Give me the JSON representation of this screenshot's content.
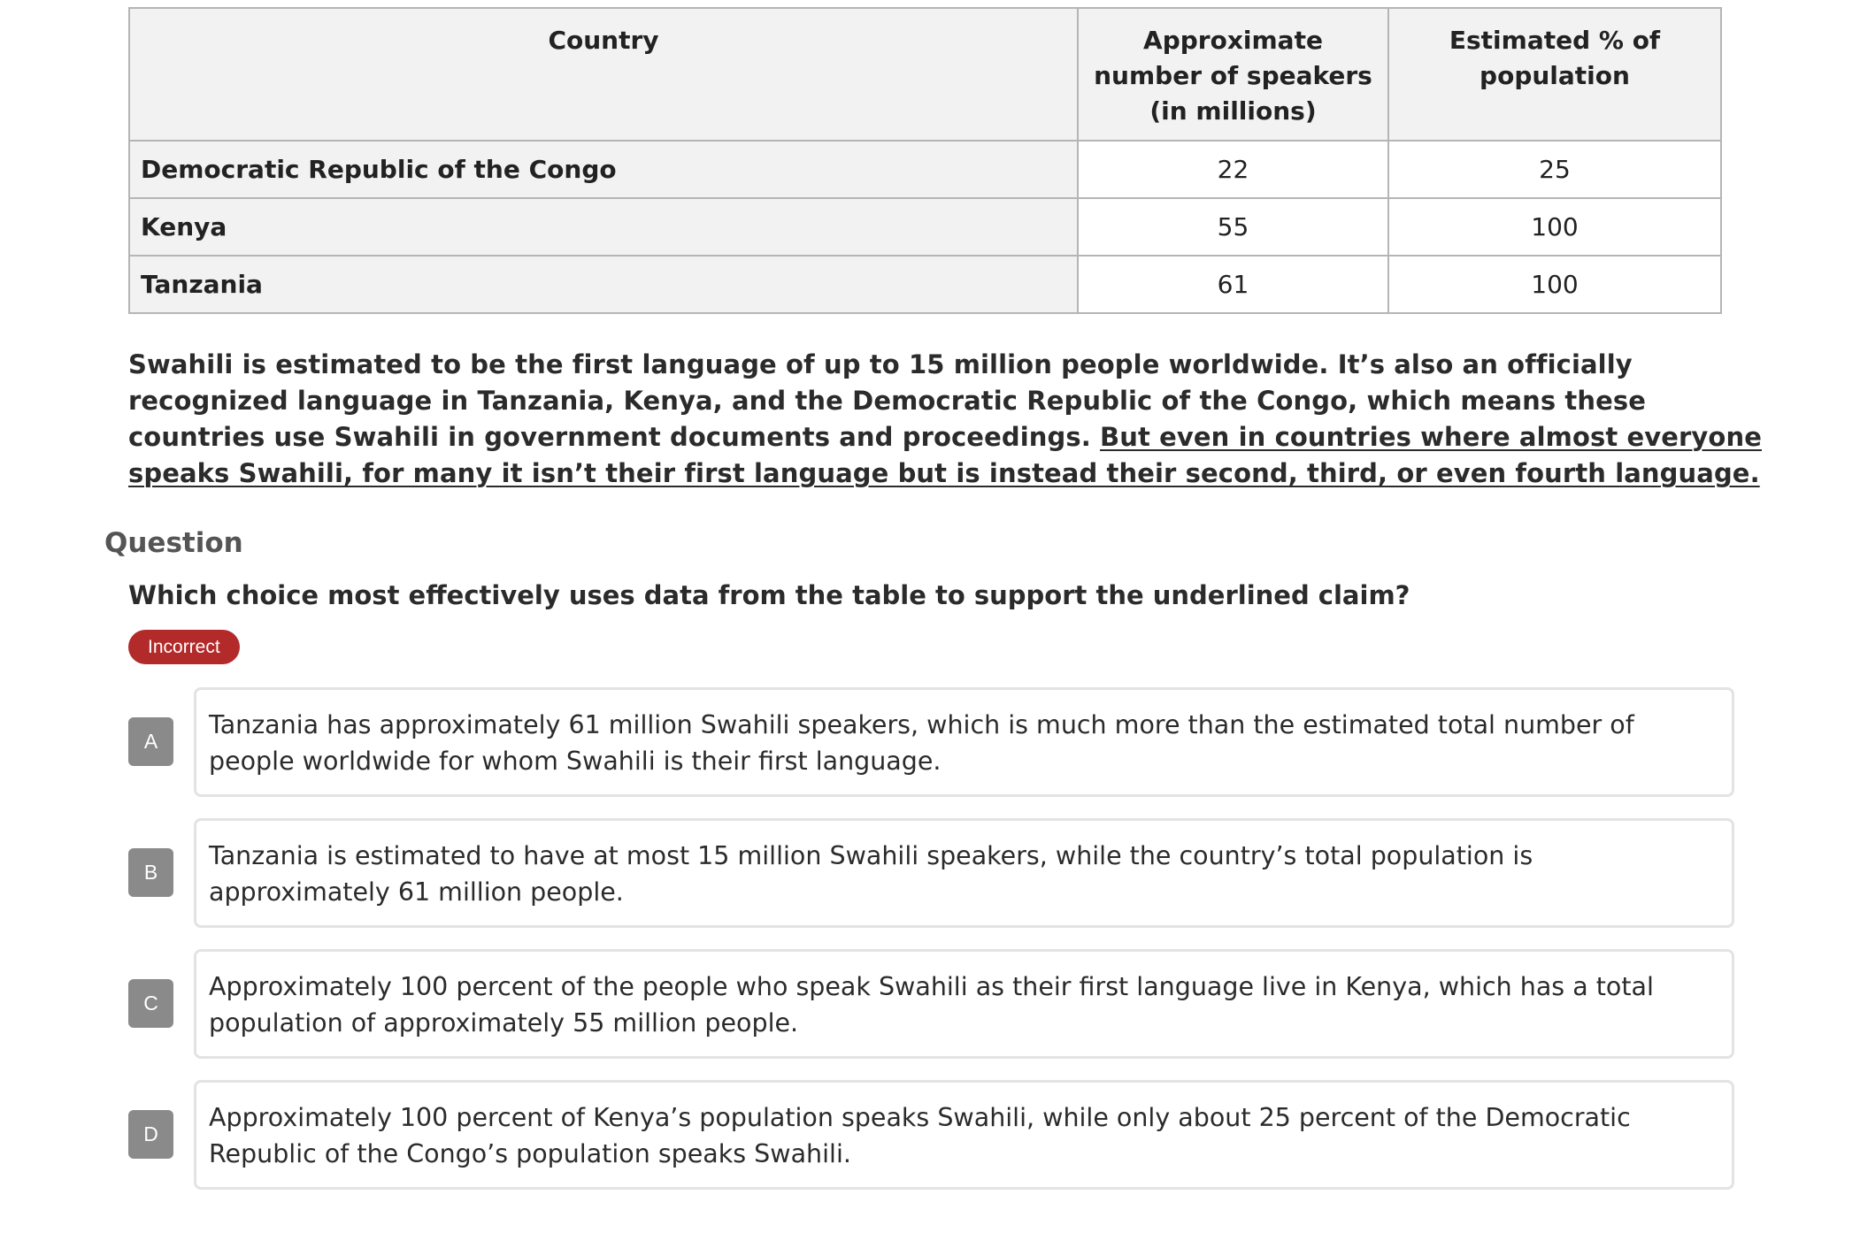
{
  "table": {
    "headers": [
      "Country",
      "Approximate number of speakers (in millions)",
      "Estimated % of population"
    ],
    "rows": [
      {
        "country": "Democratic Republic of the Congo",
        "speakers": "22",
        "percent": "25"
      },
      {
        "country": "Kenya",
        "speakers": "55",
        "percent": "100"
      },
      {
        "country": "Tanzania",
        "speakers": "61",
        "percent": "100"
      }
    ]
  },
  "passage": {
    "plain": "Swahili is estimated to be the first language of up to 15 million people worldwide. It’s also an officially recognized language in Tanzania, Kenya, and the Democratic Republic of the Congo, which means these countries use Swahili in government documents and proceedings. ",
    "underlined": "But even in countries where almost everyone speaks Swahili, for many it isn’t their first language but is instead their second, third, or even fourth language."
  },
  "question": {
    "heading": "Question",
    "text": "Which choice most effectively uses data from the table to support the underlined claim?",
    "status": "Incorrect",
    "status_color": "#b22a2a"
  },
  "choices": [
    {
      "letter": "A",
      "text": "Tanzania has approximately 61 million Swahili speakers, which is much more than the estimated total number of people worldwide for whom Swahili is their first language."
    },
    {
      "letter": "B",
      "text": "Tanzania is estimated to have at most 15 million Swahili speakers, while the country’s total population is approximately 61 million people."
    },
    {
      "letter": "C",
      "text": "Approximately 100 percent of the people who speak Swahili as their first language live in Kenya, which has a total population of approximately 55 million people."
    },
    {
      "letter": "D",
      "text": "Approximately 100 percent of Kenya’s population speaks Swahili, while only about 25 percent of the Democratic Republic of the Congo’s population speaks Swahili."
    }
  ]
}
